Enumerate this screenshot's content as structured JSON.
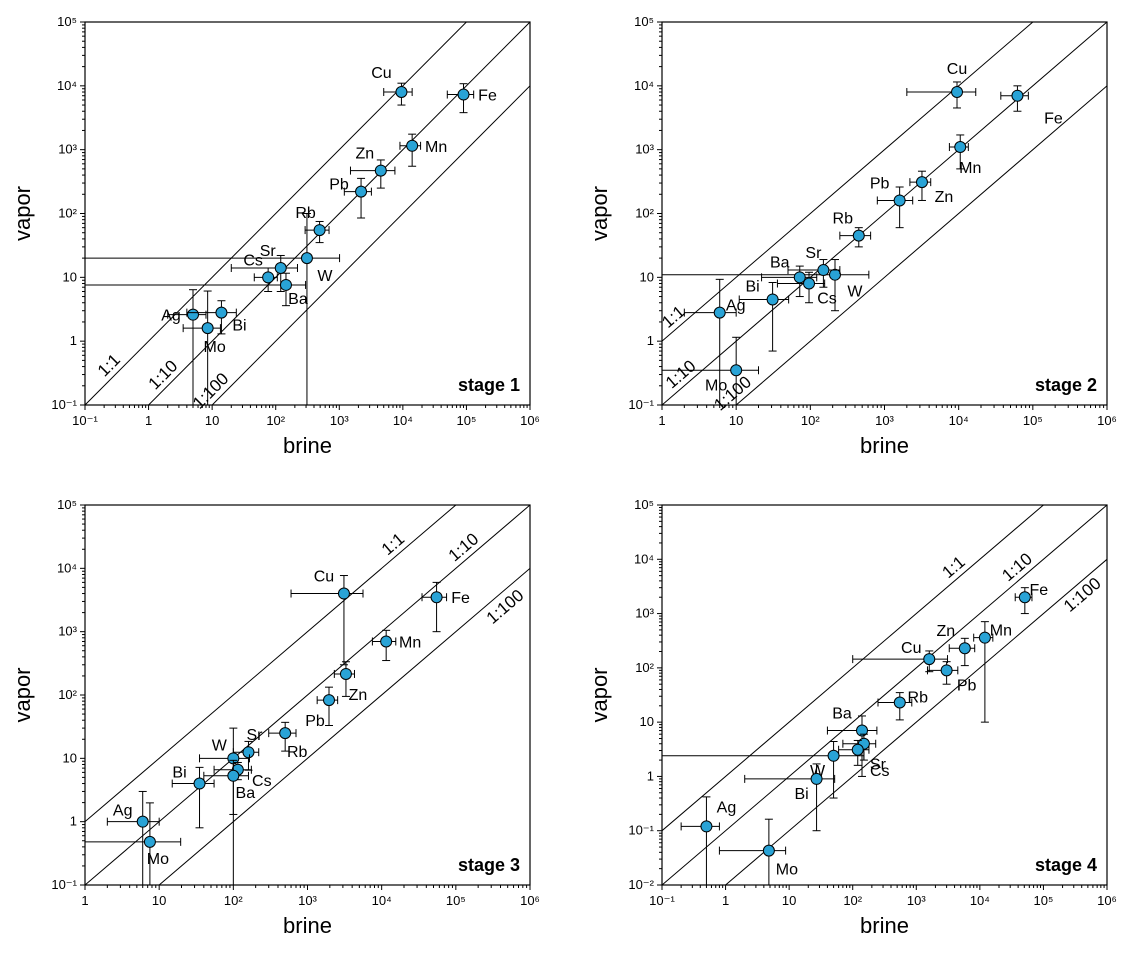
{
  "chart_data": [
    {
      "type": "scatter",
      "title": "stage 1",
      "xlabel": "brine",
      "ylabel": "vapor",
      "log_x": true,
      "log_y": true,
      "color": "#29a3d6",
      "xlim": [
        0.1,
        1000000
      ],
      "ylim": [
        0.1,
        100000
      ],
      "xticks": [
        {
          "value": 0.1,
          "label": "10⁻¹"
        },
        1,
        10,
        {
          "value": 100,
          "label": "10²"
        },
        {
          "value": 1000,
          "label": "10³"
        },
        {
          "value": 10000,
          "label": "10⁴"
        },
        {
          "value": 100000,
          "label": "10⁵"
        },
        {
          "value": 1000000,
          "label": "10⁶"
        }
      ],
      "yticks": [
        {
          "value": 0.1,
          "label": "10⁻¹"
        },
        1,
        10,
        {
          "value": 100,
          "label": "10²"
        },
        {
          "value": 1000,
          "label": "10³"
        },
        {
          "value": 10000,
          "label": "10⁴"
        },
        {
          "value": 100000,
          "label": "10⁵"
        }
      ],
      "ratio_lines": [
        {
          "label": "1:1",
          "ratio": 1
        },
        {
          "label": "1:10",
          "ratio": 0.1
        },
        {
          "label": "1:100",
          "ratio": 0.01
        }
      ],
      "labels": [
        "Cu",
        "Fe",
        "Mn",
        "Zn",
        "Pb",
        "Rb",
        "W",
        "Sr",
        "Cs",
        "Ba",
        "Ag",
        "Bi",
        "Mo"
      ],
      "x": [
        9500,
        90000,
        14000,
        4500,
        2200,
        490,
        310,
        120,
        76,
        145,
        5,
        14,
        8.5
      ],
      "xerr": [
        4500,
        40000,
        5000,
        3000,
        1000,
        200,
        700,
        100,
        30,
        150,
        3,
        10,
        5
      ],
      "values": [
        8000,
        7300,
        1150,
        470,
        220,
        55,
        20,
        14,
        10,
        7.6,
        2.6,
        2.8,
        1.6
      ],
      "yerr": [
        3000,
        3500,
        600,
        220,
        135,
        20,
        80,
        8,
        4,
        4,
        3.8,
        1.5,
        4.5
      ]
    },
    {
      "type": "scatter",
      "title": "stage 2",
      "xlabel": "brine",
      "ylabel": "vapor",
      "log_x": true,
      "log_y": true,
      "color": "#29a3d6",
      "xlim": [
        1,
        1000000
      ],
      "ylim": [
        0.1,
        100000
      ],
      "xticks": [
        1,
        10,
        {
          "value": 100,
          "label": "10²"
        },
        {
          "value": 1000,
          "label": "10³"
        },
        {
          "value": 10000,
          "label": "10⁴"
        },
        {
          "value": 100000,
          "label": "10⁵"
        },
        {
          "value": 1000000,
          "label": "10⁶"
        }
      ],
      "yticks": [
        {
          "value": 0.1,
          "label": "10⁻¹"
        },
        1,
        10,
        {
          "value": 100,
          "label": "10²"
        },
        {
          "value": 1000,
          "label": "10³"
        },
        {
          "value": 10000,
          "label": "10⁴"
        },
        {
          "value": 100000,
          "label": "10⁵"
        }
      ],
      "ratio_lines": [
        {
          "label": "1:1",
          "ratio": 1
        },
        {
          "label": "1:10",
          "ratio": 0.1
        },
        {
          "label": "1:100",
          "ratio": 0.01
        }
      ],
      "labels": [
        "Cu",
        "Fe",
        "Mn",
        "Zn",
        "Pb",
        "Rb",
        "W",
        "Sr",
        "Ba",
        "Cs",
        "Bi",
        "Ag",
        "Mo"
      ],
      "x": [
        9500,
        62000,
        10500,
        3200,
        1600,
        450,
        215,
        150,
        72,
        96,
        31,
        6,
        10
      ],
      "xerr": [
        7500,
        25000,
        3000,
        1000,
        800,
        200,
        400,
        100,
        50,
        60,
        20,
        4,
        10
      ],
      "values": [
        8000,
        7000,
        1100,
        310,
        160,
        45,
        11,
        13,
        10,
        8,
        4.5,
        2.8,
        0.35
      ],
      "yerr": [
        3500,
        3000,
        600,
        150,
        100,
        15,
        8,
        6,
        5,
        4,
        3.8,
        6.5,
        0.8
      ]
    },
    {
      "type": "scatter",
      "title": "stage 3",
      "xlabel": "brine",
      "ylabel": "vapor",
      "log_x": true,
      "log_y": true,
      "color": "#29a3d6",
      "xlim": [
        1,
        1000000
      ],
      "ylim": [
        0.1,
        100000
      ],
      "xticks": [
        1,
        10,
        {
          "value": 100,
          "label": "10²"
        },
        {
          "value": 1000,
          "label": "10³"
        },
        {
          "value": 10000,
          "label": "10⁴"
        },
        {
          "value": 100000,
          "label": "10⁵"
        },
        {
          "value": 1000000,
          "label": "10⁶"
        }
      ],
      "yticks": [
        {
          "value": 0.1,
          "label": "10⁻¹"
        },
        1,
        10,
        {
          "value": 100,
          "label": "10²"
        },
        {
          "value": 1000,
          "label": "10³"
        },
        {
          "value": 10000,
          "label": "10⁴"
        },
        {
          "value": 100000,
          "label": "10⁵"
        }
      ],
      "ratio_lines": [
        {
          "label": "1:1",
          "ratio": 1
        },
        {
          "label": "1:10",
          "ratio": 0.1
        },
        {
          "label": "1:100",
          "ratio": 0.01
        }
      ],
      "labels": [
        "Cu",
        "Fe",
        "Mn",
        "Zn",
        "Pb",
        "Rb",
        "Sr",
        "W",
        "Cs",
        "Ba",
        "Bi",
        "Ag",
        "Mo"
      ],
      "x": [
        3100,
        55000,
        11500,
        3300,
        1950,
        500,
        160,
        100,
        115,
        100,
        35,
        6,
        7.5
      ],
      "xerr": [
        2500,
        20000,
        4000,
        1000,
        600,
        200,
        60,
        65,
        60,
        60,
        20,
        4,
        12
      ],
      "values": [
        4000,
        3500,
        700,
        215,
        83,
        25,
        12.5,
        10,
        6.6,
        5.3,
        4,
        1,
        0.48
      ],
      "yerr": [
        3700,
        2500,
        350,
        120,
        50,
        12,
        6,
        20,
        2,
        4,
        3.2,
        2,
        1.5
      ]
    },
    {
      "type": "scatter",
      "title": "stage 4",
      "xlabel": "brine",
      "ylabel": "vapor",
      "log_x": true,
      "log_y": true,
      "color": "#29a3d6",
      "xlim": [
        0.1,
        1000000
      ],
      "ylim": [
        0.01,
        100000
      ],
      "xticks": [
        {
          "value": 0.1,
          "label": "10⁻¹"
        },
        1,
        10,
        {
          "value": 100,
          "label": "10²"
        },
        {
          "value": 1000,
          "label": "10³"
        },
        {
          "value": 10000,
          "label": "10⁴"
        },
        {
          "value": 100000,
          "label": "10⁵"
        },
        {
          "value": 1000000,
          "label": "10⁶"
        }
      ],
      "yticks": [
        {
          "value": 0.01,
          "label": "10⁻²"
        },
        {
          "value": 0.1,
          "label": "10⁻¹"
        },
        1,
        10,
        {
          "value": 100,
          "label": "10²"
        },
        {
          "value": 1000,
          "label": "10³"
        },
        {
          "value": 10000,
          "label": "10⁴"
        },
        {
          "value": 100000,
          "label": "10⁵"
        }
      ],
      "ratio_lines": [
        {
          "label": "1:1",
          "ratio": 1
        },
        {
          "label": "1:10",
          "ratio": 0.1
        },
        {
          "label": "1:100",
          "ratio": 0.01
        }
      ],
      "labels": [
        "Fe",
        "Mn",
        "Zn",
        "Cu",
        "Pb",
        "Rb",
        "Ba",
        "Sr",
        "Cs",
        "W",
        "Bi",
        "Ag",
        "Mo"
      ],
      "x": [
        51000,
        12000,
        5800,
        1600,
        3000,
        550,
        140,
        150,
        120,
        50,
        27,
        0.5,
        4.8
      ],
      "xerr": [
        15000,
        4000,
        2500,
        1500,
        1500,
        300,
        100,
        80,
        60,
        100,
        25,
        0.3,
        4
      ],
      "values": [
        2000,
        360,
        230,
        145,
        90,
        23,
        7,
        4,
        3.1,
        2.4,
        0.9,
        0.12,
        0.043
      ],
      "yerr": [
        1000,
        350,
        120,
        60,
        40,
        12,
        6,
        2,
        1.5,
        2,
        0.8,
        0.3,
        0.12
      ]
    }
  ]
}
